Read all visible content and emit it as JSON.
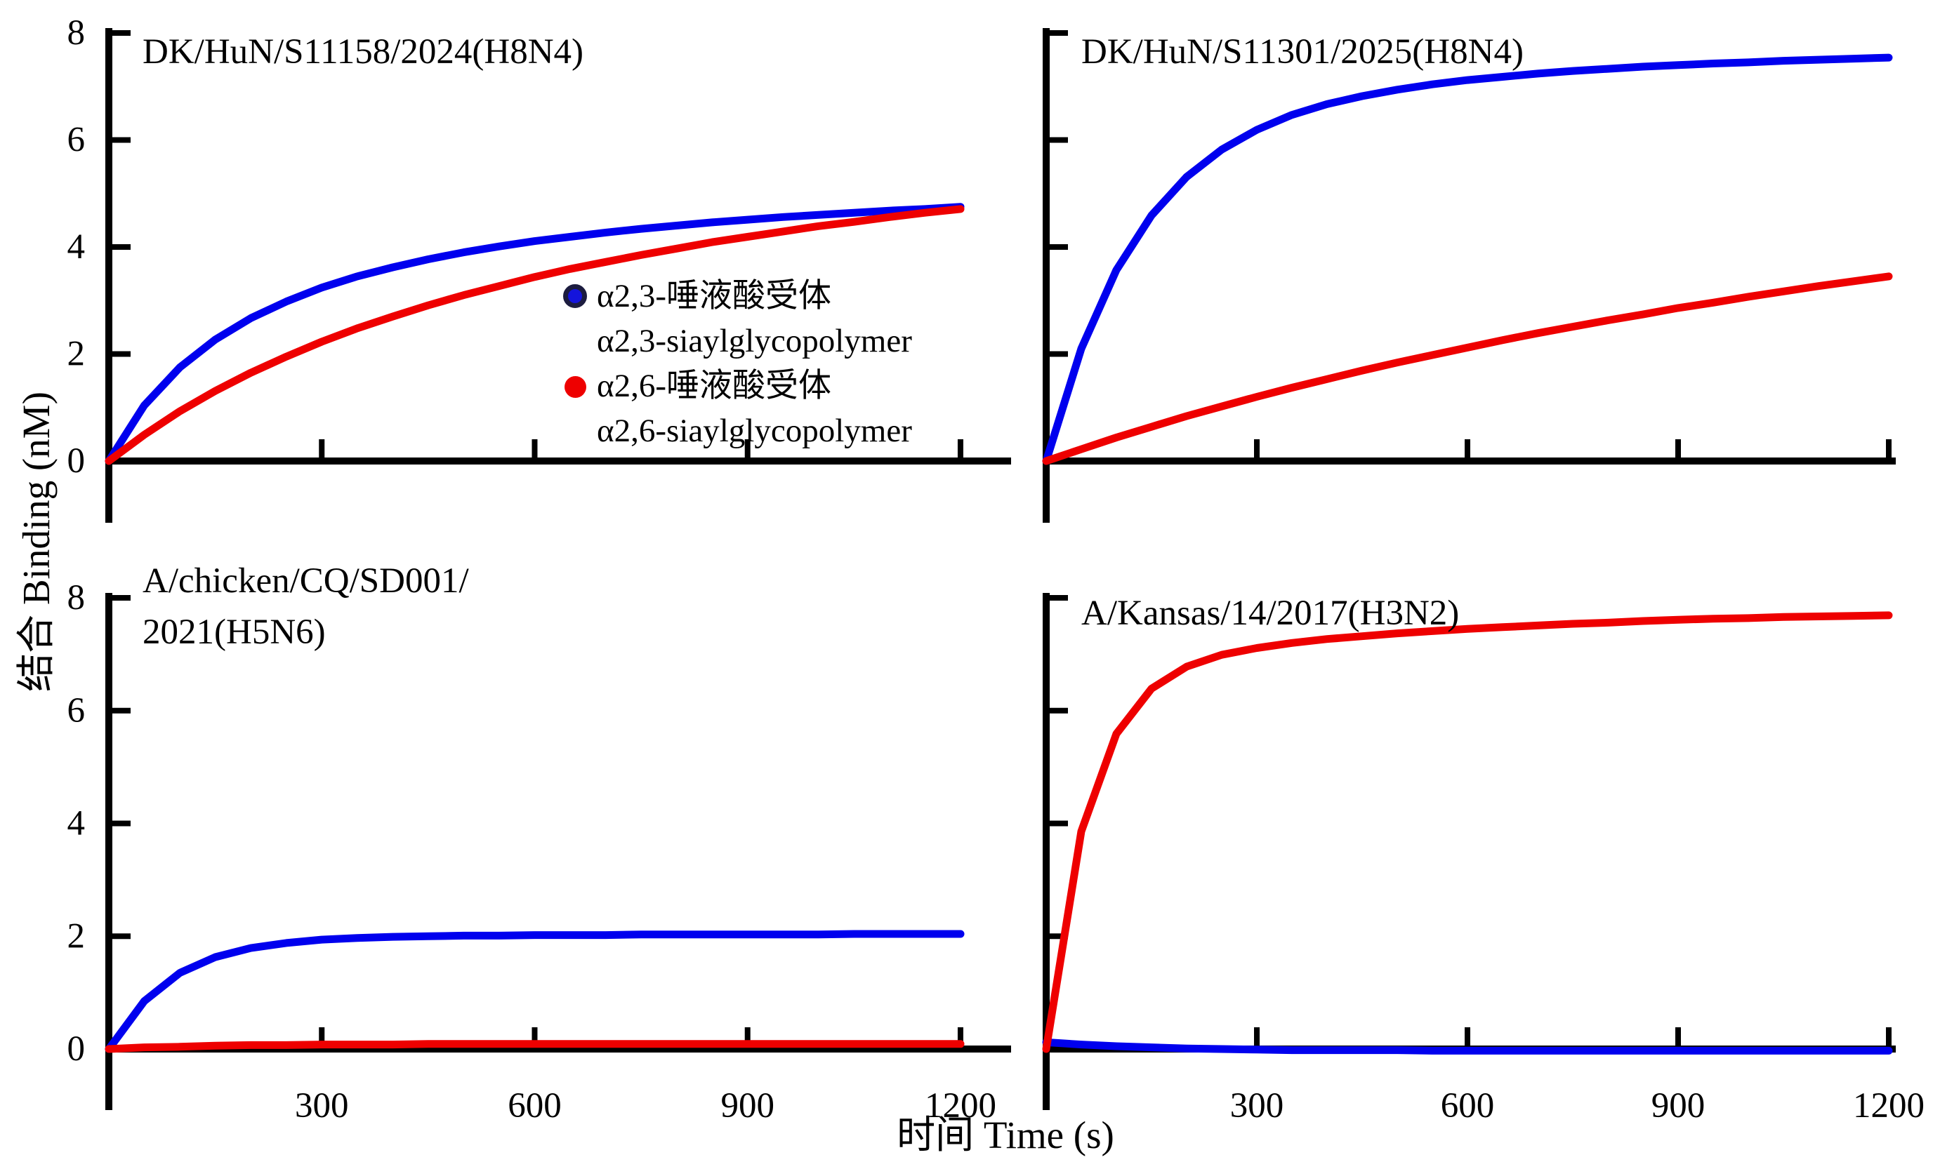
{
  "figure": {
    "y_axis_label": "结合 Binding (nM)",
    "x_axis_label": "时间 Time (s)",
    "colors": {
      "alpha23_series": "#0000ee",
      "alpha26_series": "#ee0000",
      "axis": "#000000",
      "background": "#ffffff"
    }
  },
  "legend": {
    "position": "inside-top-left-panel",
    "items": [
      {
        "marker": "blue-dot",
        "marker_color": "#1414dc",
        "line1": "α2,3-唾液酸受体",
        "line2": "α2,3-siaylglycopolymer"
      },
      {
        "marker": "red-dot",
        "marker_color": "#ee0000",
        "line1": "α2,6-唾液酸受体",
        "line2": "α2,6-siaylglycopolymer"
      }
    ]
  },
  "chart_data": [
    {
      "type": "line",
      "panel": "top-left",
      "title": "DK/HuN/S11158/2024(H8N4)",
      "xlabel": "时间 Time (s)",
      "ylabel": "结合 Binding (nM)",
      "xlim": [
        0,
        1270
      ],
      "ylim": [
        0,
        8
      ],
      "xticks": [
        300,
        600,
        900,
        1200
      ],
      "yticks": [
        0,
        2,
        4,
        6,
        8
      ],
      "show_xtick_labels": false,
      "show_ytick_labels": true,
      "grid": false,
      "x": [
        0,
        50,
        100,
        150,
        200,
        250,
        300,
        350,
        400,
        450,
        500,
        550,
        600,
        650,
        700,
        750,
        800,
        850,
        900,
        950,
        1000,
        1050,
        1100,
        1150,
        1200
      ],
      "series": [
        {
          "name": "α2,3-siaylglycopolymer",
          "color": "#0000ee",
          "values": [
            0,
            1.04,
            1.75,
            2.27,
            2.67,
            2.98,
            3.24,
            3.45,
            3.62,
            3.77,
            3.9,
            4.01,
            4.11,
            4.19,
            4.27,
            4.34,
            4.4,
            4.46,
            4.51,
            4.56,
            4.6,
            4.64,
            4.68,
            4.71,
            4.75
          ]
        },
        {
          "name": "α2,6-siaylglycopolymer",
          "color": "#ee0000",
          "values": [
            0,
            0.49,
            0.93,
            1.31,
            1.65,
            1.95,
            2.23,
            2.48,
            2.7,
            2.91,
            3.1,
            3.27,
            3.44,
            3.59,
            3.72,
            3.85,
            3.97,
            4.09,
            4.19,
            4.29,
            4.39,
            4.47,
            4.56,
            4.64,
            4.71
          ]
        }
      ]
    },
    {
      "type": "line",
      "panel": "top-right",
      "title": "DK/HuN/S11301/2025(H8N4)",
      "xlabel": "时间 Time (s)",
      "ylabel": "结合 Binding (nM)",
      "xlim": [
        0,
        1210
      ],
      "ylim": [
        0,
        8
      ],
      "xticks": [
        300,
        600,
        900,
        1200
      ],
      "yticks": [
        0,
        2,
        4,
        6,
        8
      ],
      "show_xtick_labels": false,
      "show_ytick_labels": false,
      "grid": false,
      "x": [
        0,
        50,
        100,
        150,
        200,
        250,
        300,
        350,
        400,
        450,
        500,
        550,
        600,
        650,
        700,
        750,
        800,
        850,
        900,
        950,
        1000,
        1050,
        1100,
        1150,
        1200
      ],
      "series": [
        {
          "name": "α2,3-siaylglycopolymer",
          "color": "#0000ee",
          "values": [
            0,
            2.1,
            3.57,
            4.59,
            5.31,
            5.82,
            6.19,
            6.47,
            6.67,
            6.82,
            6.94,
            7.04,
            7.12,
            7.18,
            7.24,
            7.29,
            7.33,
            7.37,
            7.4,
            7.43,
            7.45,
            7.48,
            7.5,
            7.52,
            7.54
          ]
        },
        {
          "name": "α2,6-siaylglycopolymer",
          "color": "#ee0000",
          "values": [
            0,
            0.22,
            0.44,
            0.64,
            0.84,
            1.02,
            1.2,
            1.37,
            1.53,
            1.69,
            1.84,
            1.98,
            2.12,
            2.26,
            2.39,
            2.51,
            2.63,
            2.74,
            2.86,
            2.96,
            3.07,
            3.17,
            3.27,
            3.36,
            3.45
          ]
        }
      ]
    },
    {
      "type": "line",
      "panel": "bottom-left",
      "title": "A/chicken/CQ/SD001/\n2021(H5N6)",
      "xlabel": "时间 Time (s)",
      "ylabel": "结合 Binding (nM)",
      "xlim": [
        0,
        1270
      ],
      "ylim": [
        0,
        8
      ],
      "xticks": [
        300,
        600,
        900,
        1200
      ],
      "yticks": [
        0,
        2,
        4,
        6,
        8
      ],
      "show_xtick_labels": true,
      "show_ytick_labels": true,
      "grid": false,
      "x": [
        0,
        50,
        100,
        150,
        200,
        250,
        300,
        350,
        400,
        450,
        500,
        550,
        600,
        650,
        700,
        750,
        800,
        850,
        900,
        950,
        1000,
        1050,
        1100,
        1150,
        1200
      ],
      "series": [
        {
          "name": "α2,3-siaylglycopolymer",
          "color": "#0000ee",
          "values": [
            0,
            0.85,
            1.35,
            1.63,
            1.79,
            1.88,
            1.94,
            1.97,
            1.99,
            2.0,
            2.01,
            2.01,
            2.02,
            2.02,
            2.02,
            2.03,
            2.03,
            2.03,
            2.03,
            2.03,
            2.03,
            2.04,
            2.04,
            2.04,
            2.04
          ]
        },
        {
          "name": "α2,6-siaylglycopolymer",
          "color": "#ee0000",
          "values": [
            0,
            0.03,
            0.04,
            0.06,
            0.07,
            0.07,
            0.08,
            0.08,
            0.08,
            0.09,
            0.09,
            0.09,
            0.09,
            0.09,
            0.09,
            0.09,
            0.09,
            0.09,
            0.09,
            0.09,
            0.09,
            0.09,
            0.09,
            0.09,
            0.09
          ]
        }
      ]
    },
    {
      "type": "line",
      "panel": "bottom-right",
      "title": "A/Kansas/14/2017(H3N2)",
      "xlabel": "时间 Time (s)",
      "ylabel": "结合 Binding (nM)",
      "xlim": [
        0,
        1210
      ],
      "ylim": [
        0,
        8
      ],
      "xticks": [
        300,
        600,
        900,
        1200
      ],
      "yticks": [
        0,
        2,
        4,
        6,
        8
      ],
      "show_xtick_labels": true,
      "show_ytick_labels": false,
      "grid": false,
      "x": [
        0,
        50,
        100,
        150,
        200,
        250,
        300,
        350,
        400,
        450,
        500,
        550,
        600,
        650,
        700,
        750,
        800,
        850,
        900,
        950,
        1000,
        1050,
        1100,
        1150,
        1200
      ],
      "series": [
        {
          "name": "α2,3-siaylglycopolymer",
          "color": "#0000ee",
          "values": [
            0.12,
            0.08,
            0.05,
            0.03,
            0.01,
            0.0,
            -0.01,
            -0.02,
            -0.02,
            -0.02,
            -0.02,
            -0.03,
            -0.03,
            -0.03,
            -0.03,
            -0.03,
            -0.03,
            -0.03,
            -0.03,
            -0.03,
            -0.03,
            -0.03,
            -0.03,
            -0.03,
            -0.03
          ]
        },
        {
          "name": "α2,6-siaylglycopolymer",
          "color": "#ee0000",
          "values": [
            0,
            3.86,
            5.59,
            6.39,
            6.78,
            6.99,
            7.11,
            7.2,
            7.27,
            7.32,
            7.37,
            7.41,
            7.45,
            7.48,
            7.51,
            7.54,
            7.56,
            7.59,
            7.61,
            7.63,
            7.64,
            7.66,
            7.67,
            7.68,
            7.69
          ]
        }
      ]
    }
  ]
}
